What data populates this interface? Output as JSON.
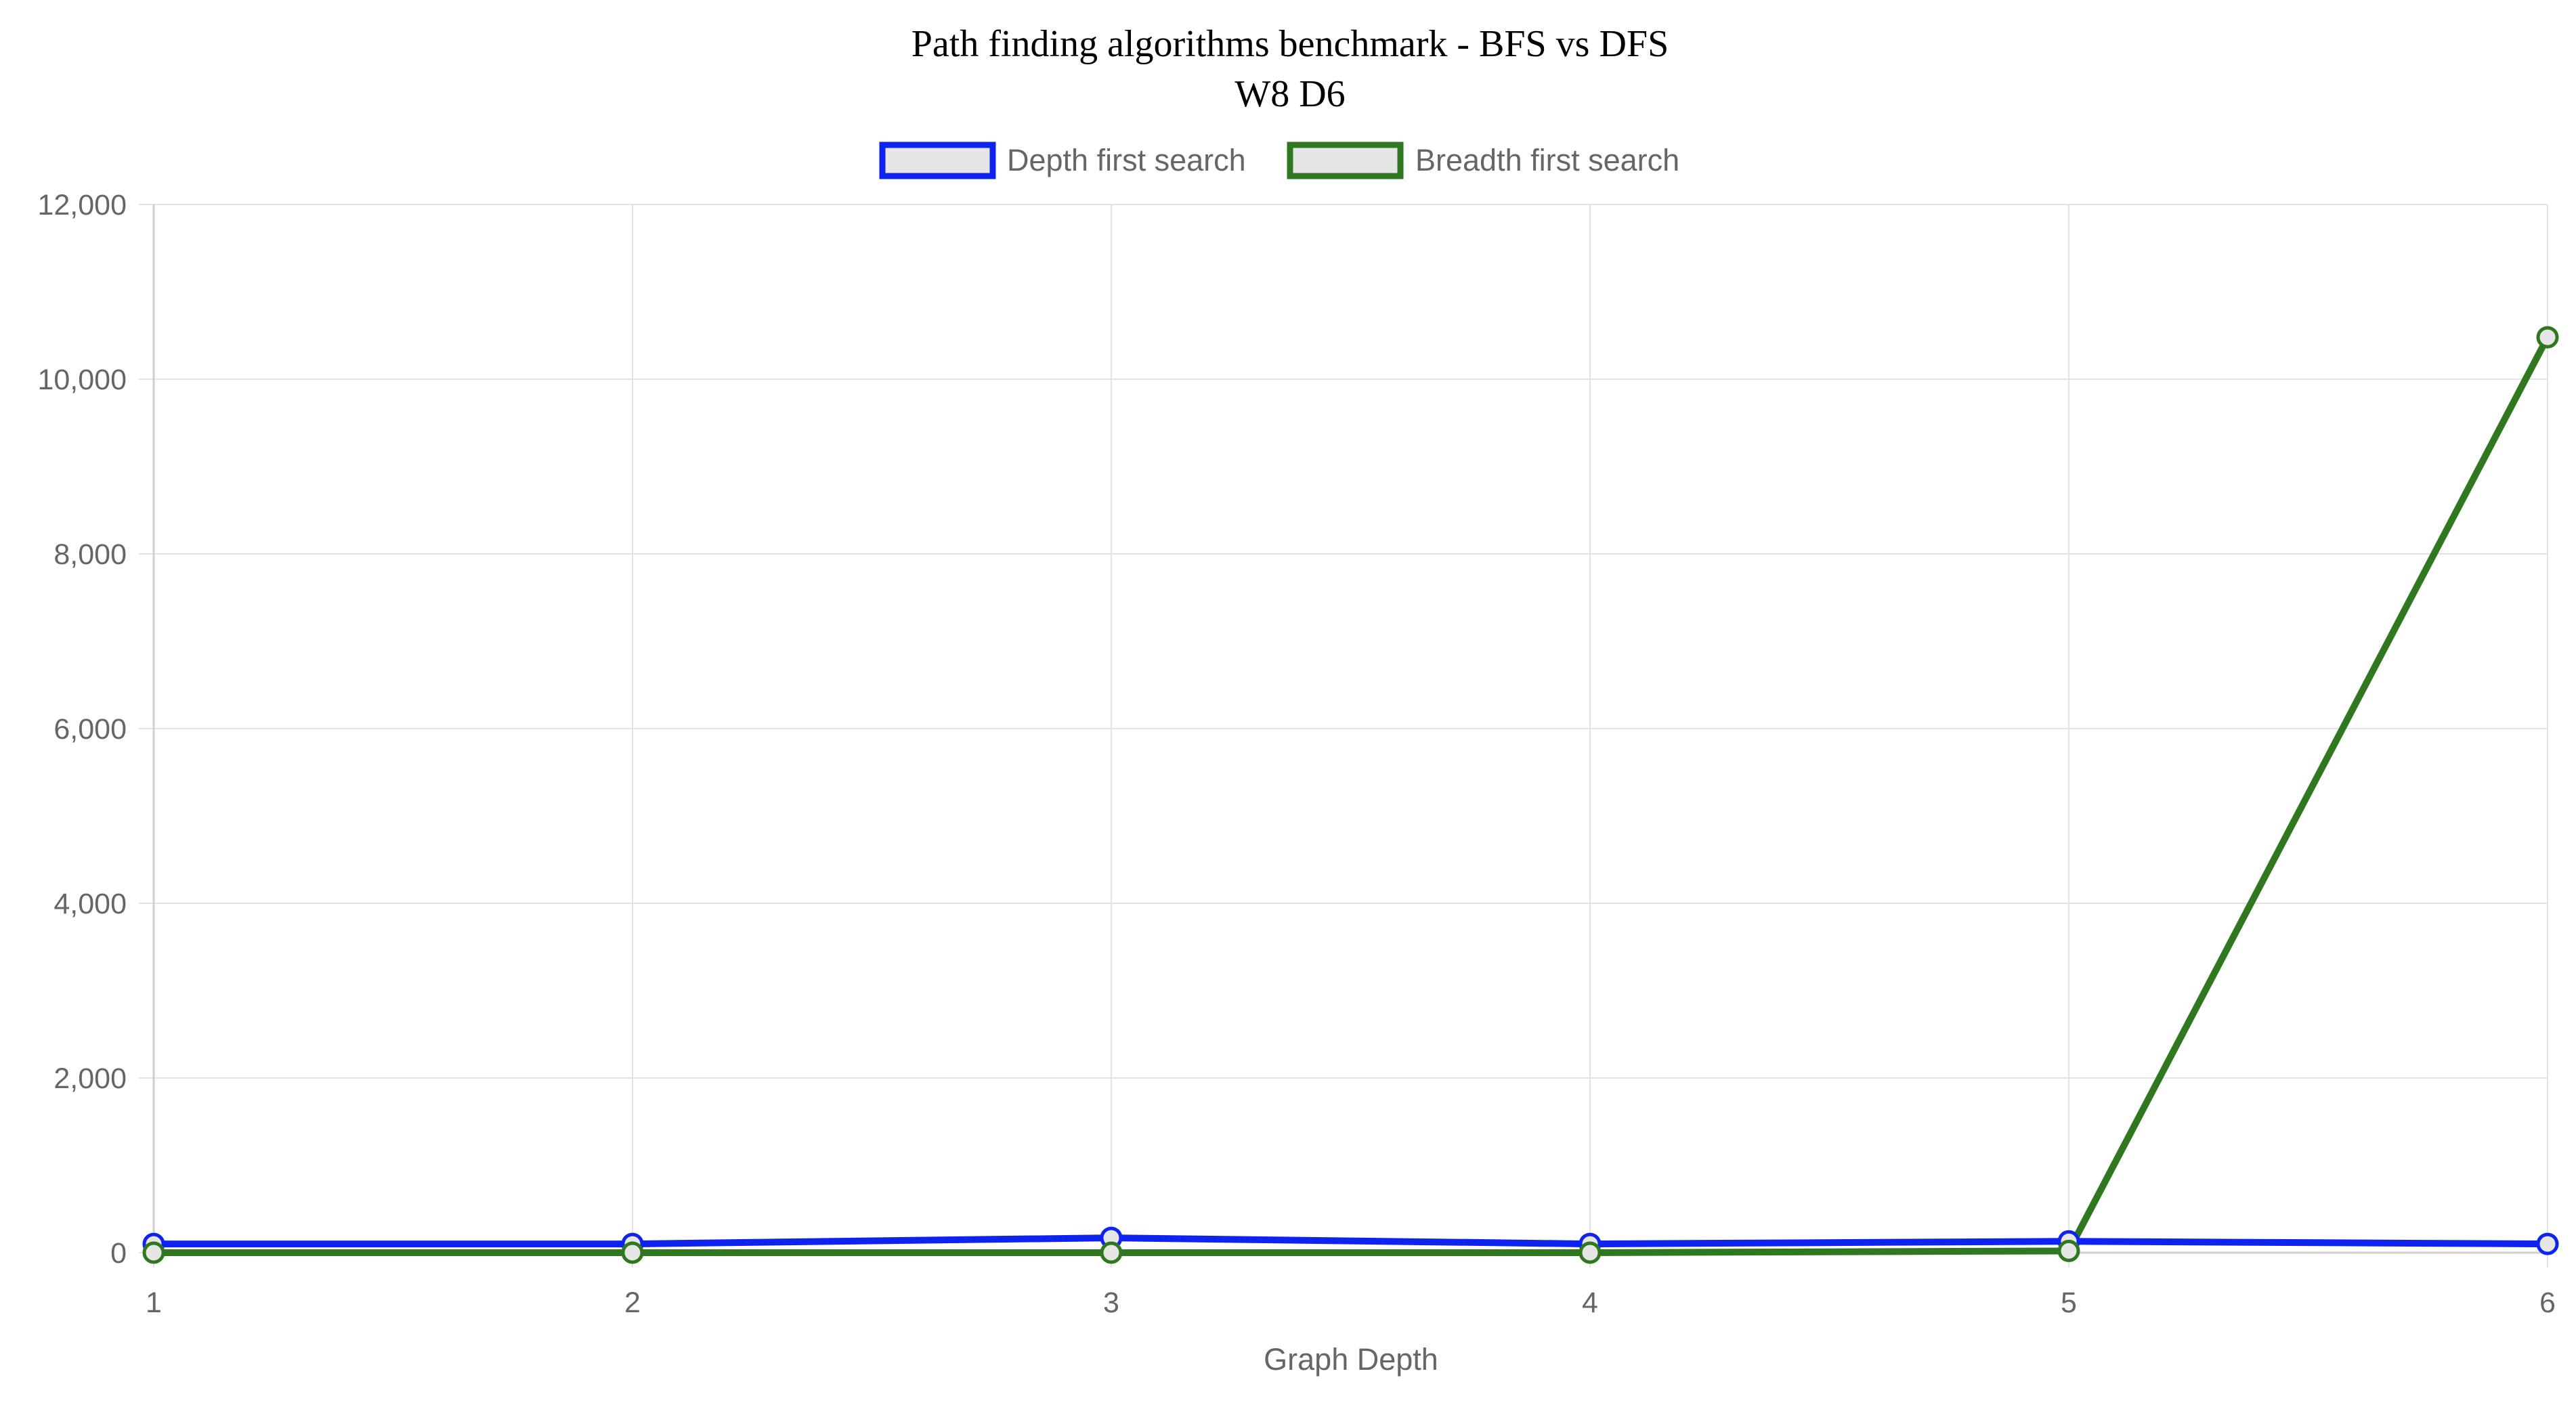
{
  "chart_data": {
    "type": "line",
    "title": "Path finding algorithms benchmark - BFS vs DFS",
    "subtitle": "W8 D6",
    "xlabel": "Graph Depth",
    "ylabel": "",
    "categories": [
      "1",
      "2",
      "3",
      "4",
      "5",
      "6"
    ],
    "ylim": [
      0,
      12000
    ],
    "yticks": [
      "0",
      "2,000",
      "4,000",
      "6,000",
      "8,000",
      "10,000",
      "12,000"
    ],
    "grid": true,
    "legend_position": "top",
    "series": [
      {
        "name": "Depth first search",
        "color": "#0f23f0",
        "values": [
          100,
          100,
          170,
          100,
          130,
          100
        ]
      },
      {
        "name": "Breadth first search",
        "color": "#2f7820",
        "values": [
          0,
          0,
          0,
          0,
          20,
          10480
        ]
      }
    ]
  }
}
